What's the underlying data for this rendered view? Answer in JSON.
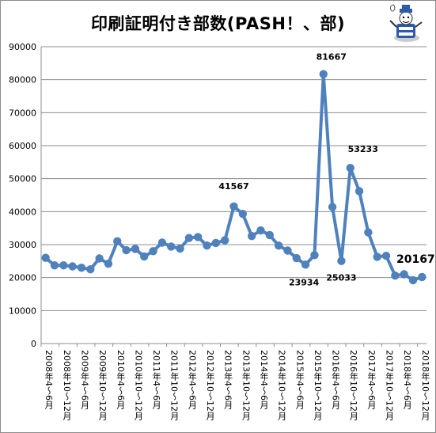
{
  "chart_data": {
    "type": "line",
    "title": "印刷証明付き部数(PASH！、部)",
    "xlabel": "",
    "ylabel": "",
    "ylim": [
      0,
      90000
    ],
    "yticks": [
      0,
      10000,
      20000,
      30000,
      40000,
      50000,
      60000,
      70000,
      80000,
      90000
    ],
    "grid": true,
    "legend": "none",
    "line_color": "#4f81bd",
    "x": [
      "2008年4〜6月",
      "",
      "2008年10〜12月",
      "",
      "2009年4〜6月",
      "",
      "2009年10〜12月",
      "",
      "2010年4〜6月",
      "",
      "2010年10〜12月",
      "",
      "2011年4〜6月",
      "",
      "2011年10〜12月",
      "",
      "2012年4〜6月",
      "",
      "2012年10〜12月",
      "",
      "2013年4〜6月",
      "",
      "2013年10〜12月",
      "",
      "2014年4〜6月",
      "",
      "2014年10〜12月",
      "",
      "2015年4〜6月",
      "",
      "2015年10〜12月",
      "",
      "2016年4〜6月",
      "",
      "2016年10〜12月",
      "",
      "2017年4〜6月",
      "",
      "2017年10〜12月",
      "",
      "2018年4〜6月",
      "",
      "2018年10〜12月"
    ],
    "values": [
      26000,
      23700,
      23700,
      23400,
      23000,
      22500,
      25800,
      24200,
      31000,
      28300,
      28700,
      26400,
      28000,
      30600,
      29400,
      28800,
      32000,
      32300,
      29700,
      30500,
      31300,
      41567,
      39300,
      32600,
      34300,
      32900,
      29700,
      28200,
      25900,
      23934,
      26800,
      81667,
      41400,
      25033,
      53233,
      46200,
      33700,
      26300,
      26600,
      20600,
      21000,
      19200,
      20167
    ],
    "annotations": [
      {
        "index": 21,
        "label": "41567"
      },
      {
        "index": 29,
        "label": "23934"
      },
      {
        "index": 31,
        "label": "81667"
      },
      {
        "index": 33,
        "label": "25033"
      },
      {
        "index": 34,
        "label": "53233"
      },
      {
        "index": 42,
        "label": "20167"
      }
    ]
  },
  "chart": {
    "title": "印刷証明付き部数(PASH！、部)",
    "mascot_icon": "mascot-character-icon"
  }
}
